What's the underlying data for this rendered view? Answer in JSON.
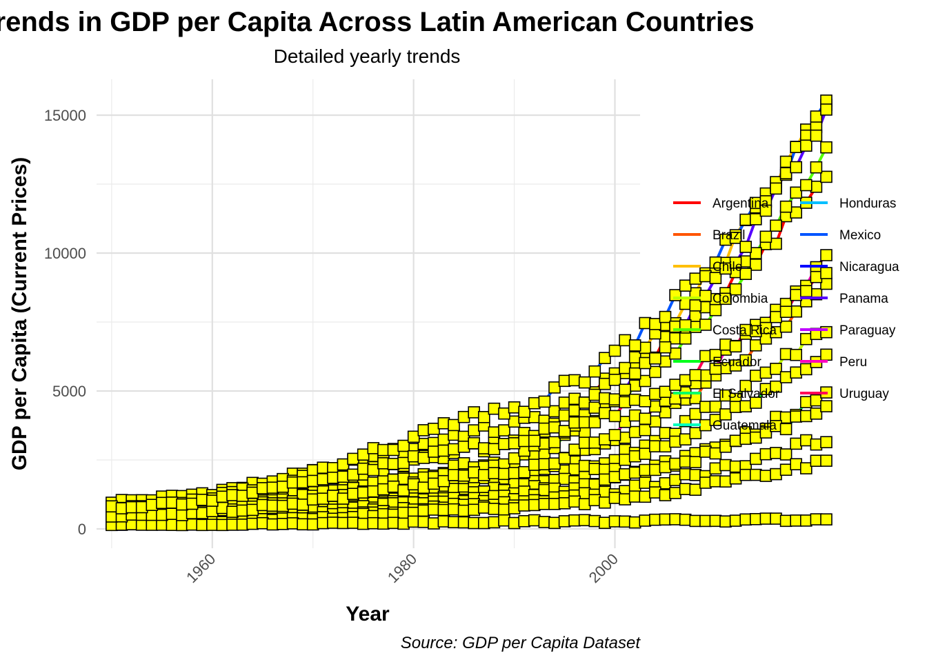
{
  "chart_data": {
    "type": "line",
    "title": "Trends in GDP per Capita Across Latin American Countries",
    "subtitle": "Detailed yearly trends",
    "xlabel": "Year",
    "ylabel": "GDP per Capita (Current Prices)",
    "caption": "Source: GDP per Capita Dataset",
    "xlim": [
      1948.5,
      2002.5
    ],
    "ylim": [
      -700,
      16300
    ],
    "x_ticks": [
      1960,
      1980,
      2000
    ],
    "y_ticks": [
      0,
      5000,
      10000,
      15000
    ],
    "grid": true,
    "legend_position": "right",
    "marker": {
      "shape": "square",
      "fill": "#ffff00",
      "stroke": "#000000"
    },
    "series": [
      {
        "name": "Argentina",
        "color": "#ff0000",
        "start": 1000,
        "mid": 3500,
        "end": 12800,
        "noise": 260
      },
      {
        "name": "Brazil",
        "color": "#ff5500",
        "start": 450,
        "mid": 1700,
        "end": 8800,
        "noise": 200
      },
      {
        "name": "Chile",
        "color": "#ffbf00",
        "start": 700,
        "mid": 2900,
        "end": 15500,
        "noise": 260
      },
      {
        "name": "Colombia",
        "color": "#bfff00",
        "start": 350,
        "mid": 1400,
        "end": 7300,
        "noise": 180
      },
      {
        "name": "Costa Rica",
        "color": "#55ff00",
        "start": 600,
        "mid": 2100,
        "end": 13600,
        "noise": 230
      },
      {
        "name": "Ecuador",
        "color": "#00ff1a",
        "start": 300,
        "mid": 1200,
        "end": 6400,
        "noise": 160
      },
      {
        "name": "El Salvador",
        "color": "#00ff66",
        "start": 250,
        "mid": 1000,
        "end": 4800,
        "noise": 140
      },
      {
        "name": "Guatemala",
        "color": "#00ffbf",
        "start": 300,
        "mid": 1100,
        "end": 4400,
        "noise": 140
      },
      {
        "name": "Honduras",
        "color": "#00bfff",
        "start": 200,
        "mid": 850,
        "end": 3300,
        "noise": 120
      },
      {
        "name": "Mexico",
        "color": "#0055ff",
        "start": 700,
        "mid": 4000,
        "end": 15200,
        "noise": 280
      },
      {
        "name": "Nicaragua",
        "color": "#0000ff",
        "start": 180,
        "mid": 700,
        "end": 2500,
        "noise": 100
      },
      {
        "name": "Panama",
        "color": "#5500ff",
        "start": 500,
        "mid": 2200,
        "end": 15100,
        "noise": 240
      },
      {
        "name": "Paraguay",
        "color": "#bf00ff",
        "start": 150,
        "mid": 260,
        "end": 350,
        "noise": 60
      },
      {
        "name": "Peru",
        "color": "#ff00bf",
        "start": 450,
        "mid": 1900,
        "end": 9800,
        "noise": 210
      },
      {
        "name": "Uruguay",
        "color": "#ff0055",
        "start": 800,
        "mid": 3000,
        "end": 9300,
        "noise": 240
      }
    ],
    "x_start": 1950,
    "x_end": 2021
  }
}
